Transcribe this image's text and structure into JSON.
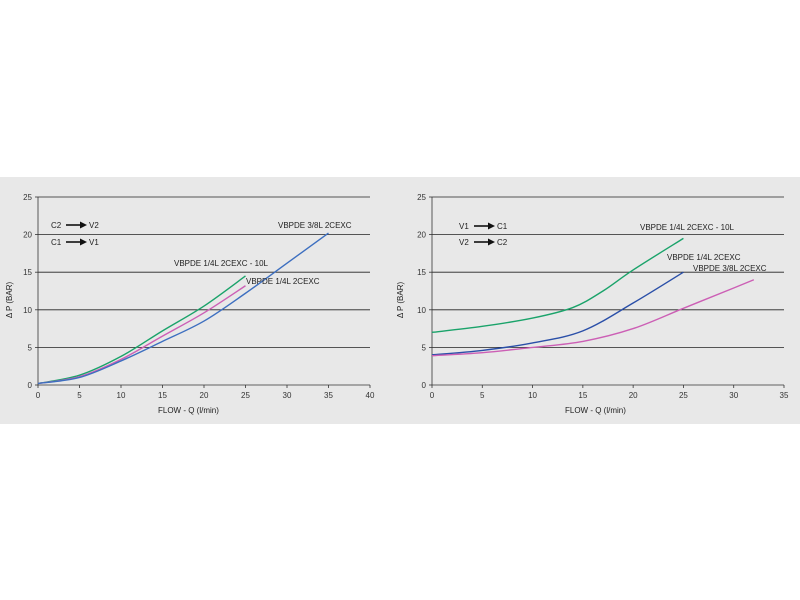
{
  "colors": {
    "green": "#1aa36a",
    "pink": "#cc5fb5",
    "blue": "#3d6fc0",
    "navy": "#2a4fa8",
    "grid": "#222222"
  },
  "chart_data": [
    {
      "type": "line",
      "title": "",
      "xlabel": "FLOW - Q (l/min)",
      "ylabel": "Δ P (BAR)",
      "xlim": [
        0,
        40
      ],
      "ylim": [
        0,
        25
      ],
      "xticks": [
        0,
        5,
        10,
        15,
        20,
        25,
        30,
        35,
        40
      ],
      "yticks": [
        0,
        5,
        10,
        15,
        20,
        25
      ],
      "annotations": [
        {
          "from": "C2",
          "to": "V2"
        },
        {
          "from": "C1",
          "to": "V1"
        }
      ],
      "series": [
        {
          "name": "VBPDE 1/4L 2CEXC - 10L",
          "color": "green",
          "x": [
            0,
            5,
            10,
            15,
            20,
            25
          ],
          "y": [
            0.2,
            1.3,
            3.8,
            7.2,
            10.5,
            14.5
          ]
        },
        {
          "name": "VBPDE 1/4L 2CEXC",
          "color": "pink",
          "x": [
            0,
            5,
            10,
            15,
            20,
            25
          ],
          "y": [
            0.2,
            1.1,
            3.4,
            6.5,
            9.6,
            13.2
          ]
        },
        {
          "name": "VBPDE 3/8L 2CEXC",
          "color": "blue",
          "x": [
            0,
            5,
            10,
            15,
            20,
            25,
            30,
            35
          ],
          "y": [
            0.2,
            1.0,
            3.2,
            5.8,
            8.5,
            12.2,
            16.2,
            20.2
          ]
        }
      ]
    },
    {
      "type": "line",
      "title": "",
      "xlabel": "FLOW - Q (l/min)",
      "ylabel": "Δ P (BAR)",
      "xlim": [
        0,
        35
      ],
      "ylim": [
        0,
        25
      ],
      "xticks": [
        0,
        5,
        10,
        15,
        20,
        25,
        30,
        35
      ],
      "yticks": [
        0,
        5,
        10,
        15,
        20,
        25
      ],
      "annotations": [
        {
          "from": "V1",
          "to": "C1"
        },
        {
          "from": "V2",
          "to": "C2"
        }
      ],
      "series": [
        {
          "name": "VBPDE 1/4L 2CEXC - 10L",
          "color": "green",
          "x": [
            0,
            5,
            10,
            14,
            17,
            20,
            25
          ],
          "y": [
            7.0,
            7.8,
            8.9,
            10.3,
            12.5,
            15.3,
            19.5
          ]
        },
        {
          "name": "VBPDE 1/4L 2CEXC",
          "color": "navy",
          "x": [
            0,
            5,
            10,
            15,
            20,
            25
          ],
          "y": [
            4.0,
            4.6,
            5.6,
            7.2,
            10.9,
            15.0
          ]
        },
        {
          "name": "VBPDE 3/8L 2CEXC",
          "color": "pink",
          "x": [
            0,
            5,
            10,
            15,
            20,
            25,
            30,
            32
          ],
          "y": [
            3.9,
            4.3,
            5.0,
            5.8,
            7.5,
            10.2,
            12.9,
            14.0
          ]
        }
      ]
    }
  ]
}
